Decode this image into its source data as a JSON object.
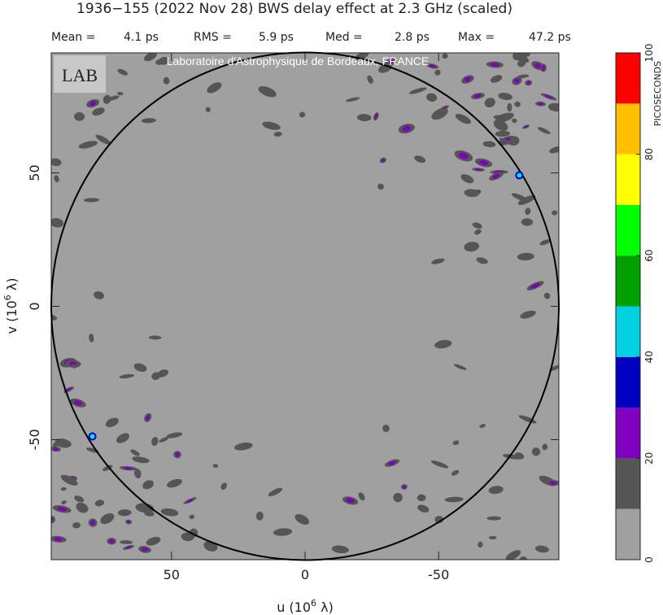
{
  "chart_data": {
    "type": "uvmap",
    "title": "1936−155  (2022 Nov 28)   BWS delay effect at  2.3 GHz (scaled)",
    "stats": [
      {
        "label": "Mean =",
        "value": "4.1 ps"
      },
      {
        "label": "RMS =",
        "value": "5.9 ps"
      },
      {
        "label": "Med =",
        "value": "2.8 ps"
      },
      {
        "label": "Max =",
        "value": "47.2 ps"
      }
    ],
    "watermark": "Laboratoire d'Astrophysique de Bordeaux, FRANCE",
    "logo": "LAB",
    "x_label": {
      "text": "u  (10",
      "sup": "6",
      "tail": " λ)"
    },
    "y_label": {
      "text": "v  (10",
      "sup": "6",
      "tail": " λ)"
    },
    "xlim": [
      95,
      -95
    ],
    "ylim": [
      -95,
      95
    ],
    "xticks": [
      50,
      0,
      -50
    ],
    "yticks": [
      50,
      0,
      -50
    ],
    "points": {
      "u": [
        -80.2,
        79.6
      ],
      "v": [
        49.1,
        -48.8
      ],
      "color": "#00e0ff"
    },
    "colorbar": {
      "label": "PICOSECONDS",
      "lim": [
        0,
        100
      ],
      "ticks": [
        0,
        20,
        40,
        60,
        80,
        100
      ],
      "colors": [
        "#a0a0a0",
        "#555555",
        "#7f00bf",
        "#0000c0",
        "#00d0e0",
        "#00a000",
        "#00ff00",
        "#ffff00",
        "#ffbf00",
        "#ff0000"
      ]
    }
  }
}
